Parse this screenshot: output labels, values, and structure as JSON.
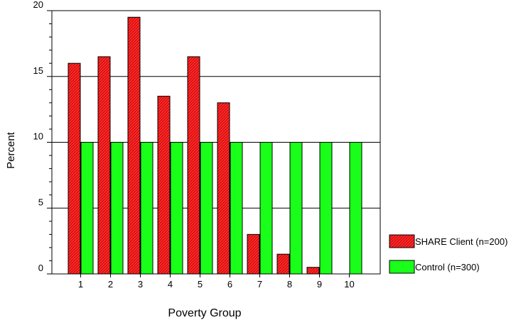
{
  "chart_data": {
    "type": "bar",
    "xlabel": "Poverty Group",
    "ylabel": "Percent",
    "categories": [
      "1",
      "2",
      "3",
      "4",
      "5",
      "6",
      "7",
      "8",
      "9",
      "10"
    ],
    "ylim": [
      0,
      20
    ],
    "yticks": [
      "0",
      "5",
      "10",
      "15",
      "20"
    ],
    "grid": "horizontal major lines at 5, 10, 15",
    "legend_position": "right",
    "series": [
      {
        "name": "SHARE Client (n=200)",
        "color": "#ff2a2a",
        "pattern": "diagonal-hatch",
        "values": [
          16,
          16.5,
          19.5,
          13.5,
          16.5,
          13,
          3,
          1.5,
          0.5,
          0
        ]
      },
      {
        "name": "Control (n=300)",
        "color": "#1aff1a",
        "pattern": "solid",
        "values": [
          10,
          10,
          10,
          10,
          10,
          10,
          10,
          10,
          10,
          10
        ]
      }
    ]
  }
}
